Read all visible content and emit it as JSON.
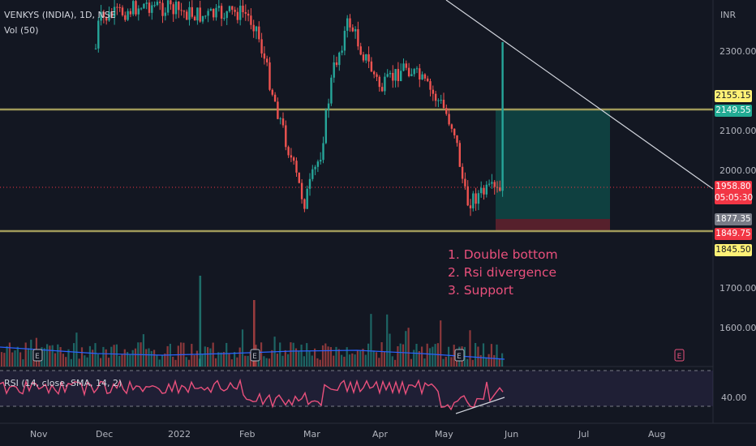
{
  "header": {
    "symbol_line": "VENKYS (INDIA), 1D, NSE",
    "volume_label": "Vol (50)",
    "rsi_label": "RSI (14, close, SMA, 14, 2)",
    "currency": "INR"
  },
  "price_axis": {
    "ticks": [
      "2300.00",
      "2100.00",
      "2000.00",
      "1700.00",
      "1600.00"
    ]
  },
  "price_tags": {
    "upper_line": "2155.15",
    "target": "2149.55",
    "last_price": "1958.80",
    "countdown": "05:05:30",
    "stop_area": "1877.35",
    "stop": "1849.75",
    "lower_line": "1845.50"
  },
  "rsi_axis": {
    "tick": "40.00"
  },
  "time_axis": {
    "labels": [
      "Nov",
      "Dec",
      "2022",
      "Feb",
      "Mar",
      "Apr",
      "May",
      "Jun",
      "Jul",
      "Aug"
    ]
  },
  "earnings_marker": "E",
  "annotations": [
    "1. Double bottom",
    "2. Rsi divergence",
    "3. Support"
  ],
  "colors": {
    "background": "#131722",
    "up": "#26a69a",
    "down": "#ef5350",
    "support_line": "#a09a5a",
    "rsi": "#e9507c",
    "volume_ma": "#2962ff",
    "annotation": "#e9507c"
  }
}
